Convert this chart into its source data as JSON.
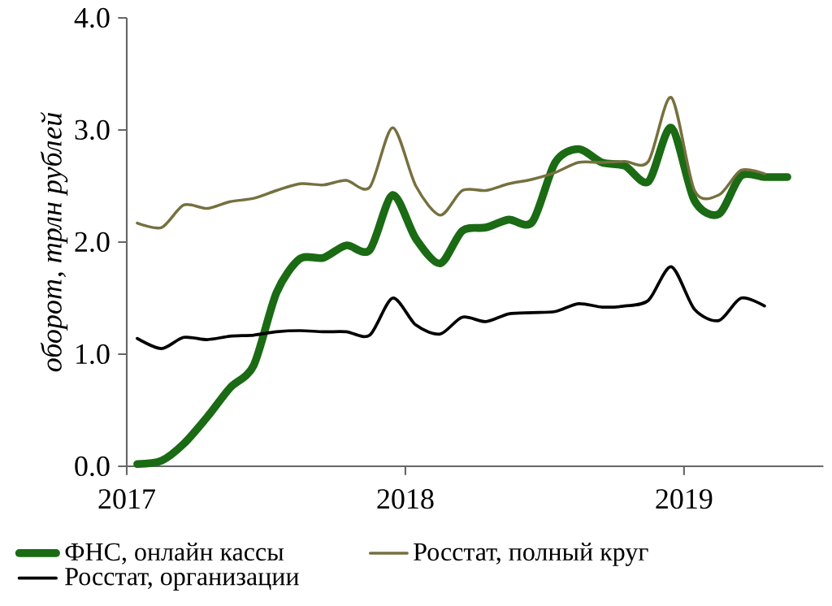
{
  "chart_data": {
    "type": "line",
    "ylabel": "оборот, трлн рублей",
    "x": [
      "2017-01-15",
      "2017-02-15",
      "2017-03-15",
      "2017-04-15",
      "2017-05-15",
      "2017-06-15",
      "2017-07-15",
      "2017-08-15",
      "2017-09-15",
      "2017-10-15",
      "2017-11-15",
      "2017-12-15",
      "2018-01-15",
      "2018-02-15",
      "2018-03-15",
      "2018-04-15",
      "2018-05-15",
      "2018-06-15",
      "2018-07-15",
      "2018-08-15",
      "2018-09-15",
      "2018-10-15",
      "2018-11-15",
      "2018-12-15",
      "2019-01-15",
      "2019-02-15",
      "2019-03-15",
      "2019-04-15",
      "2019-05-15"
    ],
    "series": [
      {
        "name": "ФНС, онлайн кассы",
        "color": "#1a6b14",
        "values": [
          0.02,
          0.05,
          0.2,
          0.44,
          0.7,
          0.9,
          1.55,
          1.85,
          1.86,
          1.97,
          1.93,
          2.42,
          2.03,
          1.81,
          2.1,
          2.13,
          2.2,
          2.18,
          2.71,
          2.83,
          2.71,
          2.68,
          2.54,
          3.02,
          2.37,
          2.25,
          2.59,
          2.58,
          2.58
        ]
      },
      {
        "name": "Росстат, полный круг",
        "color": "#76703f",
        "values": [
          2.17,
          2.13,
          2.33,
          2.3,
          2.36,
          2.39,
          2.46,
          2.52,
          2.51,
          2.55,
          2.49,
          3.02,
          2.5,
          2.24,
          2.46,
          2.46,
          2.52,
          2.56,
          2.62,
          2.71,
          2.71,
          2.72,
          2.72,
          3.29,
          2.46,
          2.42,
          2.64,
          2.61,
          null
        ]
      },
      {
        "name": "Росстат, организации",
        "color": "#000000",
        "values": [
          1.14,
          1.05,
          1.15,
          1.13,
          1.16,
          1.17,
          1.2,
          1.21,
          1.2,
          1.2,
          1.17,
          1.5,
          1.26,
          1.18,
          1.33,
          1.29,
          1.36,
          1.37,
          1.38,
          1.45,
          1.42,
          1.43,
          1.48,
          1.78,
          1.4,
          1.3,
          1.5,
          1.43,
          null
        ]
      }
    ],
    "xlim": [
      "2017-01-01",
      "2019-07-01"
    ],
    "xticks": [
      {
        "value": "2017-01-01",
        "label": "2017"
      },
      {
        "value": "2018-01-01",
        "label": "2018"
      },
      {
        "value": "2019-01-01",
        "label": "2019"
      }
    ],
    "ylim": [
      0,
      4
    ],
    "yticks": [
      {
        "value": 0,
        "label": "0.0"
      },
      {
        "value": 1,
        "label": "1.0"
      },
      {
        "value": 2,
        "label": "2.0"
      },
      {
        "value": 3,
        "label": "3.0"
      },
      {
        "value": 4,
        "label": "4.0"
      }
    ],
    "grid": false,
    "legend": "bottom",
    "marker": "none",
    "line_style": "solid"
  }
}
